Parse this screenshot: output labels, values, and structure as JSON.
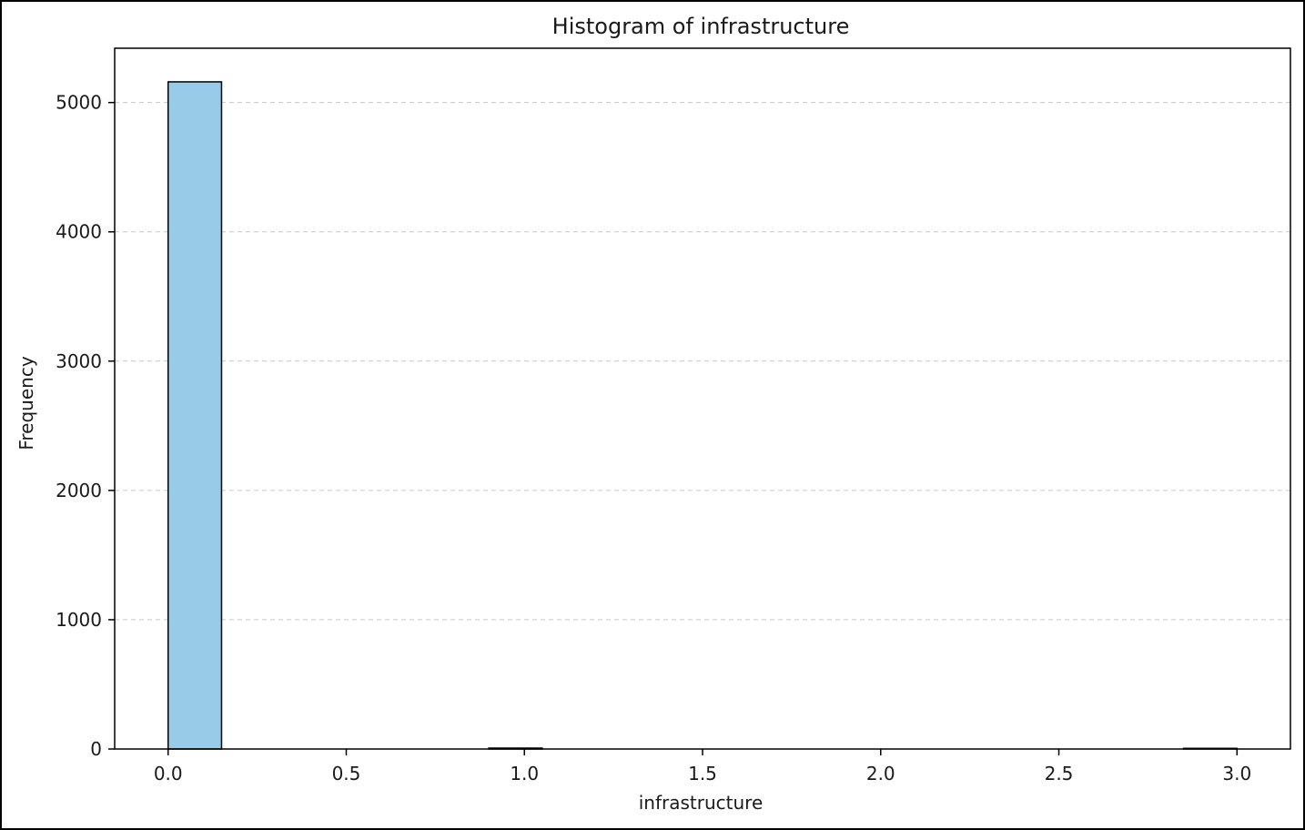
{
  "chart_data": {
    "type": "bar",
    "title": "Histogram of infrastructure",
    "xlabel": "infrastructure",
    "ylabel": "Frequency",
    "xlim": [
      -0.15,
      3.15
    ],
    "ylim": [
      0,
      5420
    ],
    "x_ticks": [
      "0.0",
      "0.5",
      "1.0",
      "1.5",
      "2.0",
      "2.5",
      "3.0"
    ],
    "y_ticks": [
      "0",
      "1000",
      "2000",
      "3000",
      "4000",
      "5000"
    ],
    "grid": "y-dashed",
    "bins": [
      {
        "start": 0.0,
        "end": 0.15,
        "count": 5160
      },
      {
        "start": 0.9,
        "end": 1.05,
        "count": 7
      },
      {
        "start": 2.85,
        "end": 3.0,
        "count": 5
      }
    ],
    "colors": {
      "bar_fill": "#97cbe7",
      "bar_edge": "#000000",
      "grid": "#c8c8c8",
      "axis": "#000000"
    }
  }
}
